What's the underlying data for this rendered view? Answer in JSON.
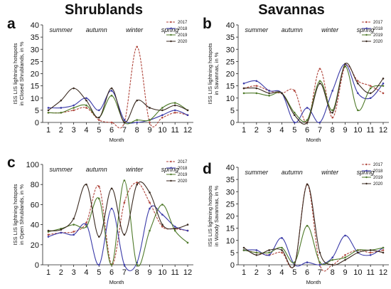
{
  "figure_titles": {
    "left": "Shrublands",
    "right": "Savannas"
  },
  "series_colors": {
    "2017": "#b0463c",
    "2018": "#3a3aa8",
    "2019": "#4f7a2a",
    "2020": "#3a2a20"
  },
  "chart_data": [
    {
      "panel": "a",
      "type": "line",
      "ylabel_lines": [
        "ISS LIS lightning hotspots",
        "in Closed Shrublands, in %"
      ],
      "xlabel": "Month",
      "x": [
        1,
        2,
        3,
        4,
        5,
        6,
        7,
        8,
        9,
        10,
        11,
        12
      ],
      "ylim": [
        0,
        40
      ],
      "yticks": [
        0,
        5,
        10,
        15,
        20,
        25,
        30,
        35,
        40
      ],
      "seasons": [
        "summer",
        "autumn",
        "winter",
        "spring"
      ],
      "series": [
        {
          "name": "2017",
          "values": [
            4,
            4,
            5,
            6,
            1,
            0,
            0,
            31,
            0,
            2,
            4,
            3
          ]
        },
        {
          "name": "2018",
          "values": [
            6,
            6,
            7,
            10,
            5,
            13,
            1,
            0,
            1,
            3,
            5,
            3
          ]
        },
        {
          "name": "2019",
          "values": [
            4,
            4,
            6,
            7,
            2,
            11,
            0,
            1,
            1,
            6,
            8,
            5
          ]
        },
        {
          "name": "2020",
          "values": [
            5,
            9,
            14,
            9,
            2,
            14,
            0,
            9,
            6,
            5,
            7,
            5
          ]
        }
      ],
      "legend": [
        "2017",
        "2018",
        "2019",
        "2020"
      ]
    },
    {
      "panel": "b",
      "type": "line",
      "ylabel_lines": [
        "ISS LIS lightning hotspots",
        "in Savannas, in %"
      ],
      "xlabel": "Month",
      "x": [
        1,
        2,
        3,
        4,
        5,
        6,
        7,
        8,
        9,
        10,
        11,
        12
      ],
      "ylim": [
        0,
        40
      ],
      "yticks": [
        0,
        5,
        10,
        15,
        20,
        25,
        30,
        35,
        40
      ],
      "seasons": [
        "summer",
        "autumn",
        "winter",
        "spring"
      ],
      "series": [
        {
          "name": "2017",
          "values": [
            14,
            15,
            13,
            12,
            13,
            0,
            22,
            2,
            23,
            17,
            15,
            12
          ]
        },
        {
          "name": "2018",
          "values": [
            16,
            17,
            13,
            12,
            0,
            6,
            0,
            13,
            24,
            12,
            10,
            16
          ]
        },
        {
          "name": "2019",
          "values": [
            12,
            12,
            11,
            12,
            4,
            1,
            17,
            5,
            23,
            5,
            14,
            15
          ]
        },
        {
          "name": "2020",
          "values": [
            14,
            14,
            12,
            12,
            3,
            0,
            16,
            4,
            24,
            16,
            12,
            18
          ]
        }
      ],
      "legend": [
        "2017",
        "2018",
        "2019",
        "2020"
      ]
    },
    {
      "panel": "c",
      "type": "line",
      "ylabel_lines": [
        "ISS LIS lightning hotspots",
        "in Open Shrublands, in %"
      ],
      "xlabel": "Month",
      "x": [
        1,
        2,
        3,
        4,
        5,
        6,
        7,
        8,
        9,
        10,
        11,
        12
      ],
      "ylim": [
        0,
        100
      ],
      "yticks": [
        0,
        20,
        40,
        60,
        80,
        100
      ],
      "seasons": [
        "summer",
        "autumn",
        "winter",
        "spring"
      ],
      "series": [
        {
          "name": "2017",
          "values": [
            30,
            32,
            33,
            42,
            78,
            0,
            62,
            82,
            62,
            38,
            36,
            34
          ]
        },
        {
          "name": "2018",
          "values": [
            28,
            32,
            30,
            40,
            0,
            56,
            0,
            2,
            56,
            50,
            38,
            34
          ]
        },
        {
          "name": "2019",
          "values": [
            33,
            36,
            40,
            38,
            66,
            0,
            84,
            0,
            34,
            60,
            34,
            22
          ]
        },
        {
          "name": "2020",
          "values": [
            34,
            35,
            46,
            80,
            28,
            76,
            30,
            80,
            72,
            40,
            36,
            40
          ]
        }
      ],
      "legend": [
        "2017",
        "2018",
        "2019",
        "2020"
      ]
    },
    {
      "panel": "d",
      "type": "line",
      "ylabel_lines": [
        "ISS LIS lightning hotspots",
        "in Woody Savannas, in %"
      ],
      "xlabel": "Month",
      "x": [
        1,
        2,
        3,
        4,
        5,
        6,
        7,
        8,
        9,
        10,
        11,
        12
      ],
      "ylim": [
        0,
        40
      ],
      "yticks": [
        0,
        5,
        10,
        15,
        20,
        25,
        30,
        35,
        40
      ],
      "seasons": [
        "summer",
        "autumn",
        "winter",
        "spring"
      ],
      "series": [
        {
          "name": "2017",
          "values": [
            6,
            5,
            4,
            5,
            0,
            33,
            0,
            0,
            4,
            6,
            5,
            6
          ]
        },
        {
          "name": "2018",
          "values": [
            6,
            6,
            4,
            11,
            0,
            1,
            0,
            3,
            12,
            5,
            4,
            7
          ]
        },
        {
          "name": "2019",
          "values": [
            6,
            5,
            5,
            7,
            1,
            16,
            1,
            2,
            3,
            6,
            6,
            7
          ]
        },
        {
          "name": "2020",
          "values": [
            7,
            4,
            6,
            6,
            0,
            33,
            5,
            0,
            2,
            5,
            6,
            5
          ]
        }
      ],
      "legend": [
        "2017",
        "2018",
        "2019",
        "2020"
      ]
    }
  ]
}
